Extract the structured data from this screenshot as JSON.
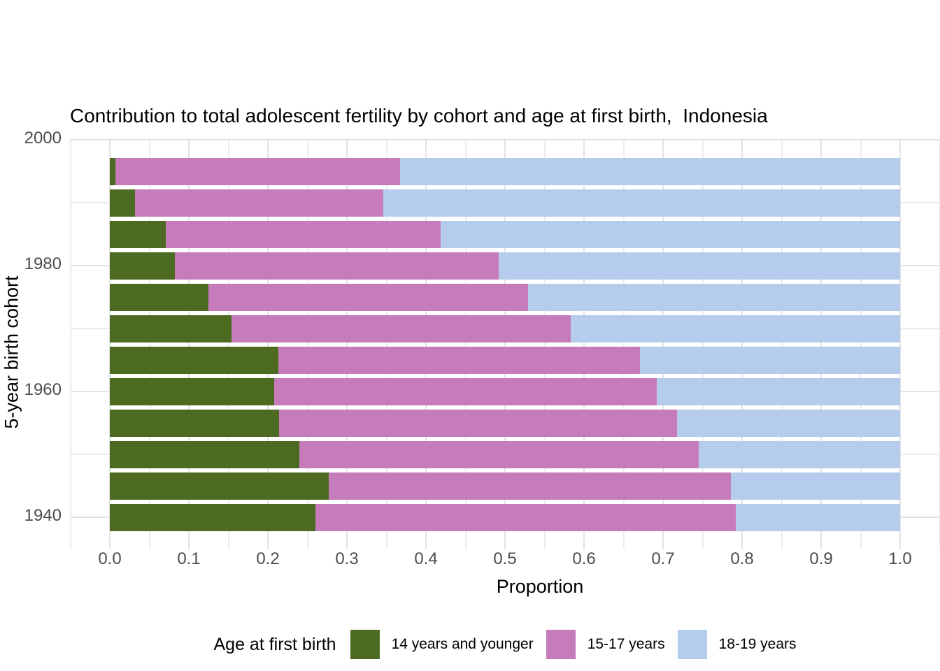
{
  "chart_data": {
    "type": "bar",
    "orientation": "horizontal",
    "stacked": true,
    "title": "Contribution to total adolescent fertility by cohort and age at first birth,  Indonesia",
    "xlabel": "Proportion",
    "ylabel": "5-year birth cohort",
    "xlim": [
      0.0,
      1.0
    ],
    "x_ticks": [
      {
        "value": 0.0,
        "label": "0.0"
      },
      {
        "value": 0.1,
        "label": "0.1"
      },
      {
        "value": 0.2,
        "label": "0.2"
      },
      {
        "value": 0.3,
        "label": "0.3"
      },
      {
        "value": 0.4,
        "label": "0.4"
      },
      {
        "value": 0.5,
        "label": "0.5"
      },
      {
        "value": 0.6,
        "label": "0.6"
      },
      {
        "value": 0.7,
        "label": "0.7"
      },
      {
        "value": 0.8,
        "label": "0.8"
      },
      {
        "value": 0.9,
        "label": "0.9"
      },
      {
        "value": 1.0,
        "label": "1.0"
      }
    ],
    "y_ticks": [
      {
        "value": 2000,
        "label": "2000"
      },
      {
        "value": 1980,
        "label": "1980"
      },
      {
        "value": 1960,
        "label": "1960"
      },
      {
        "value": 1940,
        "label": "1940"
      }
    ],
    "y_minor_ticks": [
      1990,
      1970,
      1950
    ],
    "grid": true,
    "legend_position": "bottom",
    "legend_title": "Age at first birth",
    "categories": [
      1995,
      1990,
      1985,
      1980,
      1975,
      1970,
      1965,
      1960,
      1955,
      1950,
      1945,
      1940
    ],
    "series": [
      {
        "name": "14 years and younger",
        "color": "#4D6A21",
        "values": [
          0.007,
          0.032,
          0.071,
          0.082,
          0.125,
          0.154,
          0.213,
          0.208,
          0.214,
          0.24,
          0.277,
          0.26
        ]
      },
      {
        "name": "15-17 years",
        "color": "#C67CBB",
        "values": [
          0.36,
          0.314,
          0.348,
          0.41,
          0.404,
          0.429,
          0.458,
          0.484,
          0.504,
          0.505,
          0.509,
          0.532
        ]
      },
      {
        "name": "18-19 years",
        "color": "#B6CCEC",
        "values": [
          0.633,
          0.654,
          0.581,
          0.508,
          0.471,
          0.417,
          0.329,
          0.308,
          0.282,
          0.255,
          0.214,
          0.208
        ]
      }
    ],
    "colors": {
      "grid_major": "#E3E3E3",
      "grid_minor": "#ECECEC",
      "tick_text": "#4D4D4D",
      "title_text": "#000000",
      "panel_background": "#FFFFFF"
    }
  }
}
